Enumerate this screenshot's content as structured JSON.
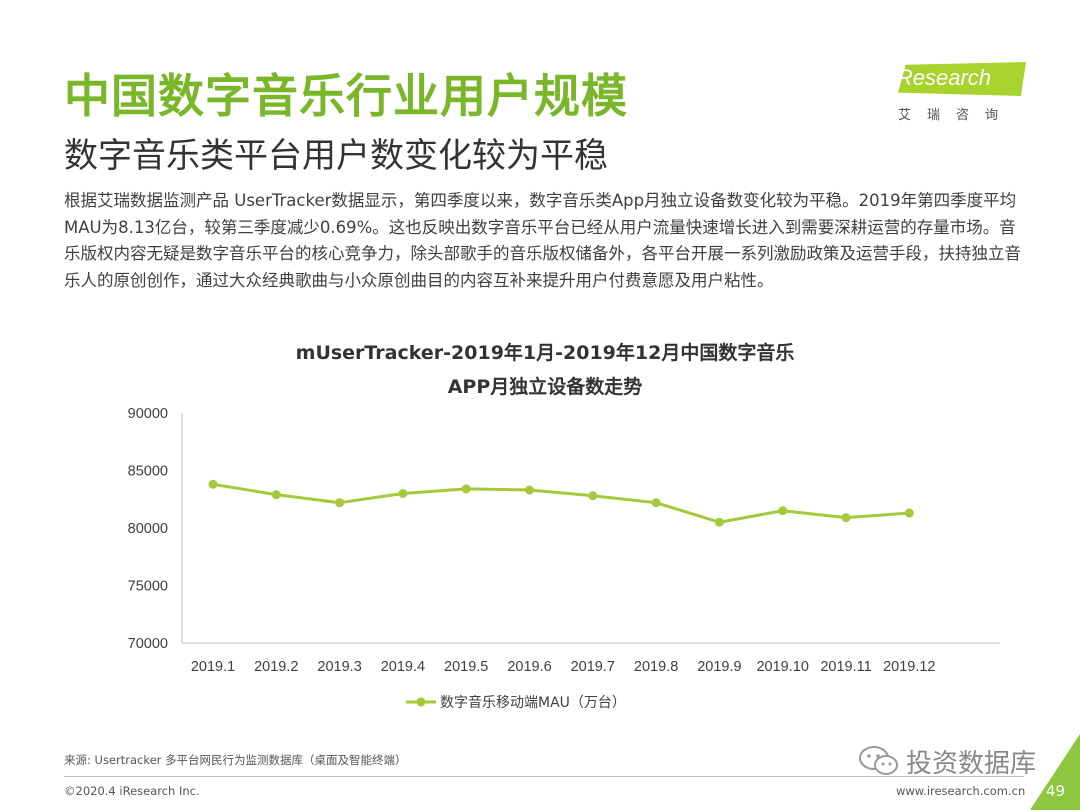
{
  "header": {
    "title": "中国数字音乐行业用户规模",
    "subtitle": "数字音乐类平台用户数变化较为平稳"
  },
  "logo": {
    "brand": "iResearch",
    "sub": "艾瑞咨询"
  },
  "body": {
    "paragraph": "根据艾瑞数据监测产品 UserTracker数据显示，第四季度以来，数字音乐类App月独立设备数变化较为平稳。2019年第四季度平均MAU为8.13亿台，较第三季度减少0.69%。这也反映出数字音乐平台已经从用户流量快速增长进入到需要深耕运营的存量市场。音乐版权内容无疑是数字音乐平台的核心竞争力，除头部歌手的音乐版权储备外，各平台开展一系列激励政策及运营手段，扶持独立音乐人的原创创作，通过大众经典歌曲与小众原创曲目的内容互补来提升用户付费意愿及用户粘性。"
  },
  "chart_data": {
    "type": "line",
    "title_line1": "mUserTracker-2019年1月-2019年12月中国数字音乐",
    "title_line2": "APP月独立设备数走势",
    "categories": [
      "2019.1",
      "2019.2",
      "2019.3",
      "2019.4",
      "2019.5",
      "2019.6",
      "2019.7",
      "2019.8",
      "2019.9",
      "2019.10",
      "2019.11",
      "2019.12"
    ],
    "series": [
      {
        "name": "数字音乐移动端MAU（万台）",
        "values": [
          83800,
          82900,
          82200,
          83000,
          83400,
          83300,
          82800,
          82200,
          80500,
          81500,
          80900,
          81300
        ],
        "color": "#a4c93a"
      }
    ],
    "ylim": [
      70000,
      90000
    ],
    "yticks": [
      70000,
      75000,
      80000,
      85000,
      90000
    ],
    "grid": false,
    "legend": "bottom"
  },
  "footer": {
    "source": "来源: Usertracker 多平台网民行为监测数据库（桌面及智能终端）",
    "copyright": "©2020.4 iResearch Inc.",
    "website": "www.iresearch.com.cn",
    "page": "49",
    "watermark": "投资数据库"
  },
  "colors": {
    "accent": "#7ab629",
    "line": "#a4c93a",
    "corner": "#8ec63f"
  }
}
